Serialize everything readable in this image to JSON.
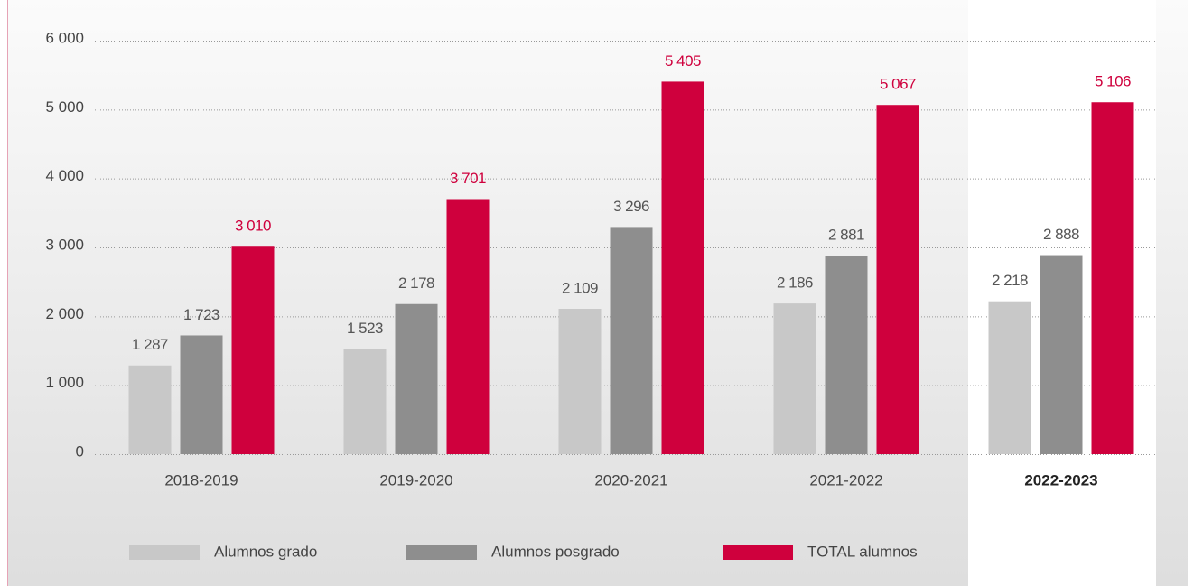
{
  "chart_data": {
    "type": "bar",
    "categories": [
      "2018-2019",
      "2019-2020",
      "2020-2021",
      "2021-2022",
      "2022-2023"
    ],
    "series": [
      {
        "name": "Alumnos grado",
        "color": "#c8c8c8",
        "label_color": "#555555",
        "values": [
          1287,
          1523,
          2109,
          2186,
          2218
        ],
        "value_labels": [
          "1 287",
          "1 523",
          "2 109",
          "2 186",
          "2 218"
        ]
      },
      {
        "name": "Alumnos posgrado",
        "color": "#8e8e8e",
        "label_color": "#555555",
        "values": [
          1723,
          2178,
          3296,
          2881,
          2888
        ],
        "value_labels": [
          "1 723",
          "2 178",
          "3 296",
          "2 881",
          "2 888"
        ]
      },
      {
        "name": "TOTAL alumnos",
        "color": "#cf003d",
        "label_color": "#cf003d",
        "values": [
          3010,
          3701,
          5405,
          5067,
          5106
        ],
        "value_labels": [
          "3 010",
          "3 701",
          "5 405",
          "5 067",
          "5 106"
        ]
      }
    ],
    "ylim": [
      0,
      6000
    ],
    "yticks": [
      0,
      {
        "value": 1000,
        "label": "1 000"
      },
      {
        "value": 2000,
        "label": "2 000"
      },
      {
        "value": 3000,
        "label": "3 000"
      },
      {
        "value": 4000,
        "label": "4 000"
      },
      {
        "value": 5000,
        "label": "5 000"
      },
      {
        "value": 6000,
        "label": "6 000"
      }
    ],
    "grid": true,
    "legend": "bottom"
  }
}
